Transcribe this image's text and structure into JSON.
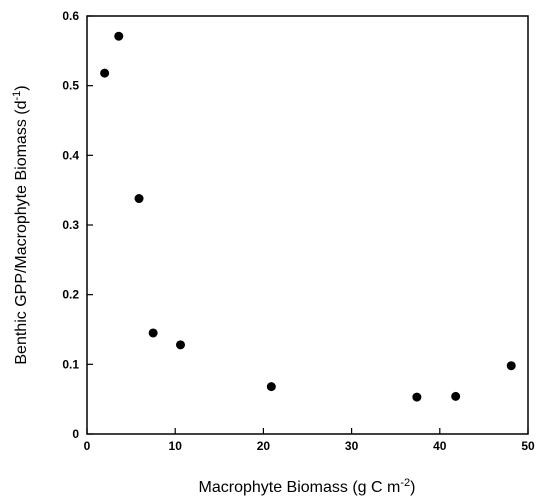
{
  "chart_data": {
    "type": "scatter",
    "title": "",
    "xlabel_main": "Macrophyte Biomass (g C m",
    "xlabel_sup": "-2",
    "xlabel_end": ")",
    "ylabel_main": "Benthic GPP/Macrophyte Biomass  (d",
    "ylabel_sup": "-1",
    "ylabel_end": ")",
    "xlim": [
      0,
      50
    ],
    "ylim": [
      0,
      0.6
    ],
    "xticks": [
      0,
      10,
      20,
      30,
      40,
      50
    ],
    "yticks": [
      0,
      0.1,
      0.2,
      0.3,
      0.4,
      0.5,
      0.6
    ],
    "xtick_labels": [
      "0",
      "10",
      "20",
      "30",
      "40",
      "50"
    ],
    "ytick_labels": [
      "0",
      "0.1",
      "0.2",
      "0.3",
      "0.4",
      "0.5",
      "0.6"
    ],
    "grid": false,
    "marker_color": "#000000",
    "points": [
      {
        "x": 2.0,
        "y": 0.518
      },
      {
        "x": 3.6,
        "y": 0.571
      },
      {
        "x": 5.9,
        "y": 0.338
      },
      {
        "x": 7.5,
        "y": 0.145
      },
      {
        "x": 10.6,
        "y": 0.128
      },
      {
        "x": 20.9,
        "y": 0.068
      },
      {
        "x": 37.4,
        "y": 0.053
      },
      {
        "x": 41.8,
        "y": 0.054
      },
      {
        "x": 48.1,
        "y": 0.098
      }
    ]
  }
}
